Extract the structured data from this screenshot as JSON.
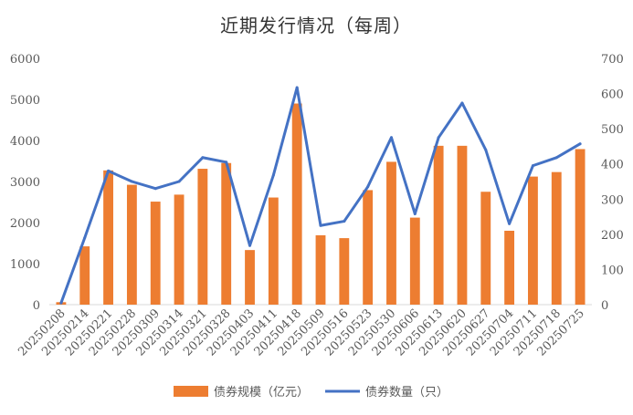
{
  "chart_data": {
    "type": "bar",
    "title": "近期发行情况（每周）",
    "categories": [
      "20250208",
      "20250214",
      "20250221",
      "20250228",
      "20250309",
      "20250314",
      "20250321",
      "20250328",
      "20250403",
      "20250411",
      "20250418",
      "20250509",
      "20250516",
      "20250523",
      "20250530",
      "20250606",
      "20250613",
      "20250620",
      "20250627",
      "20250704",
      "20250711",
      "20250718",
      "20250725"
    ],
    "series": [
      {
        "name": "债券规模（亿元）",
        "type": "bar",
        "axis": "left",
        "color": "#ED7D31",
        "values": [
          60,
          1420,
          3270,
          2920,
          2510,
          2680,
          3310,
          3450,
          1330,
          2610,
          4900,
          1690,
          1620,
          2790,
          3480,
          2120,
          3870,
          3870,
          2750,
          1800,
          3120,
          3230,
          3790
        ]
      },
      {
        "name": "债券数量（只）",
        "type": "line",
        "axis": "right",
        "color": "#4472C4",
        "values": [
          5,
          190,
          380,
          350,
          330,
          350,
          418,
          405,
          168,
          368,
          617,
          225,
          237,
          335,
          475,
          258,
          475,
          573,
          440,
          230,
          395,
          418,
          457
        ]
      }
    ],
    "y_left": {
      "lim": [
        0,
        6000
      ],
      "ticks": [
        "0",
        "1000",
        "2000",
        "3000",
        "4000",
        "5000",
        "6000"
      ]
    },
    "y_right": {
      "lim": [
        0,
        700
      ],
      "ticks": [
        "0",
        "100",
        "200",
        "300",
        "400",
        "500",
        "600",
        "700"
      ]
    },
    "grid": false,
    "legend_position": "bottom"
  }
}
